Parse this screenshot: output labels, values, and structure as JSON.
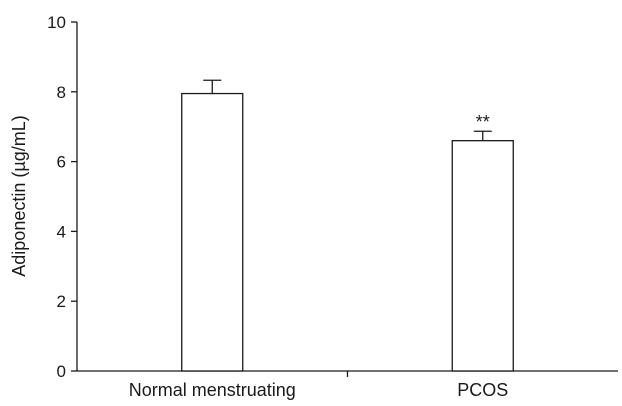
{
  "chart_data": {
    "type": "bar",
    "categories": [
      "Normal menstruating",
      "PCOS"
    ],
    "values": [
      7.95,
      6.6
    ],
    "errors": [
      0.38,
      0.27
    ],
    "ylabel": "Adiponectin (µg/mL)",
    "xlabel": "",
    "ylim": [
      0,
      10
    ],
    "yticks": [
      "0",
      "2",
      "4",
      "6",
      "8",
      "10"
    ],
    "annotations": [
      "",
      "**"
    ],
    "grid": false,
    "colors": {
      "bar_fill": "#ffffff",
      "stroke": "#1a1a1a"
    }
  }
}
